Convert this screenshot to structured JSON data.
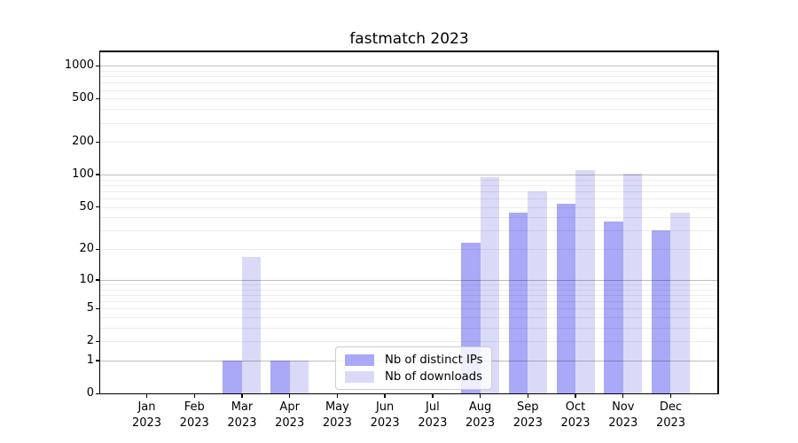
{
  "title": "fastmatch 2023",
  "year": "2023",
  "colors": {
    "distinct_ips": "#a9a9f7",
    "downloads": "#dadaf8",
    "axis": "#000000",
    "legend_border": "#cccccc"
  },
  "legend": {
    "entries": [
      {
        "label": "Nb of distinct IPs",
        "swatch": "distinct_ips"
      },
      {
        "label": "Nb of downloads",
        "swatch": "downloads"
      }
    ],
    "position": "lower center"
  },
  "chart_data": {
    "type": "bar",
    "title": "fastmatch 2023",
    "categories": [
      "Jan",
      "Feb",
      "Mar",
      "Apr",
      "May",
      "Jun",
      "Jul",
      "Aug",
      "Sep",
      "Oct",
      "Nov",
      "Dec"
    ],
    "category_year": "2023",
    "series": [
      {
        "name": "Nb of distinct IPs",
        "color_key": "distinct_ips",
        "values": [
          0,
          0,
          1,
          1,
          0,
          0,
          0,
          23,
          44,
          54,
          37,
          30
        ]
      },
      {
        "name": "Nb of downloads",
        "color_key": "downloads",
        "values": [
          0,
          0,
          17,
          1,
          0,
          0,
          0,
          94,
          70,
          110,
          103,
          44
        ]
      }
    ],
    "xlabel": "",
    "ylabel": "",
    "yscale": "log1p",
    "yticks": [
      0,
      1,
      2,
      5,
      10,
      20,
      50,
      100,
      200,
      500,
      1000
    ],
    "ylim": [
      0,
      1357
    ],
    "grid": true,
    "legend_position": "lower center"
  }
}
